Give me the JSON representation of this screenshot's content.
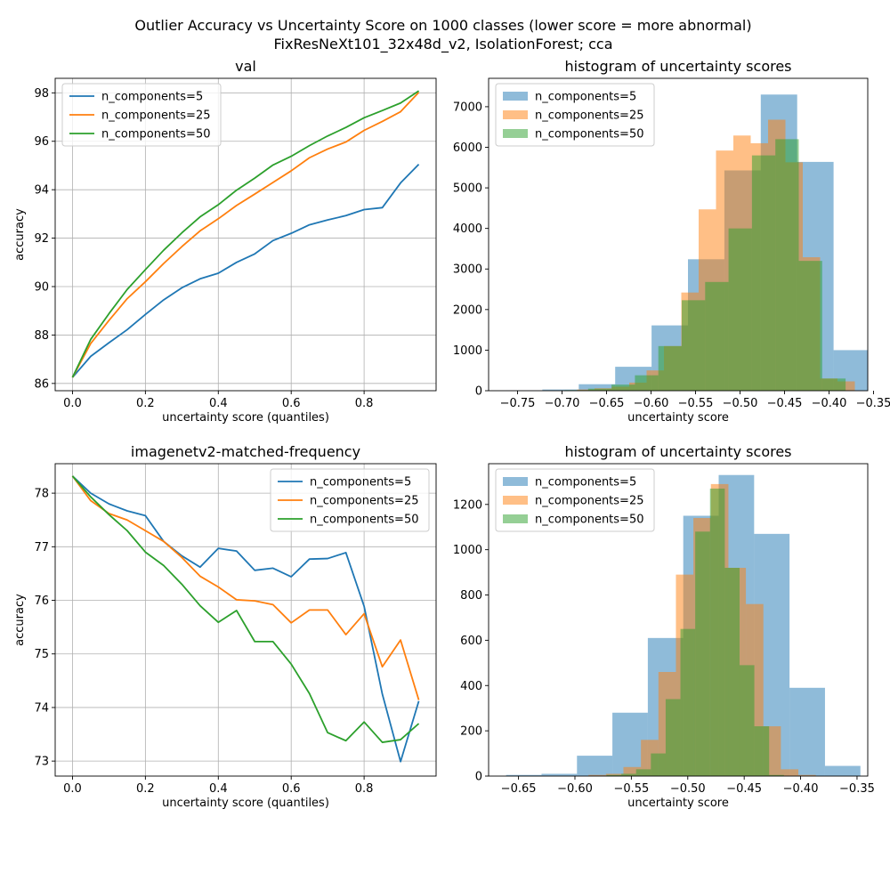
{
  "figure": {
    "title_line1": "Outlier Accuracy vs Uncertainty Score on 1000 classes (lower score = more abnormal)",
    "title_line2": "FixResNeXt101_32x48d_v2, IsolationForest; cca"
  },
  "colors": {
    "c5": "#1f77b4",
    "c25": "#ff7f0e",
    "c50": "#2ca02c",
    "grid": "#b0b0b0"
  },
  "chart_data": [
    {
      "type": "line",
      "title": "val",
      "xlabel": "uncertainty score (quantiles)",
      "ylabel": "accuracy",
      "grid": true,
      "legend": "top-left",
      "xlim": [
        -0.0475,
        0.9975
      ],
      "ylim": [
        85.7,
        98.6
      ],
      "xticks": [
        0.0,
        0.2,
        0.4,
        0.6,
        0.8
      ],
      "xtick_labels": [
        "0.0",
        "0.2",
        "0.4",
        "0.6",
        "0.8"
      ],
      "yticks": [
        86,
        88,
        90,
        92,
        94,
        96,
        98
      ],
      "ytick_labels": [
        "86",
        "88",
        "90",
        "92",
        "94",
        "96",
        "98"
      ],
      "x": [
        0.0,
        0.05,
        0.1,
        0.15,
        0.2,
        0.25,
        0.3,
        0.35,
        0.4,
        0.45,
        0.5,
        0.55,
        0.6,
        0.65,
        0.7,
        0.75,
        0.8,
        0.85,
        0.9,
        0.95
      ],
      "series": [
        {
          "name": "n_components=5",
          "color": "#1f77b4",
          "values": [
            86.25,
            87.12,
            87.68,
            88.22,
            88.85,
            89.45,
            89.95,
            90.32,
            90.55,
            91.0,
            91.35,
            91.9,
            92.2,
            92.55,
            92.75,
            92.93,
            93.18,
            93.26,
            94.28,
            95.05
          ]
        },
        {
          "name": "n_components=25",
          "color": "#ff7f0e",
          "values": [
            86.25,
            87.65,
            88.6,
            89.5,
            90.2,
            90.95,
            91.65,
            92.3,
            92.8,
            93.35,
            93.82,
            94.3,
            94.78,
            95.32,
            95.68,
            95.97,
            96.45,
            96.82,
            97.22,
            98.02
          ]
        },
        {
          "name": "n_components=50",
          "color": "#2ca02c",
          "values": [
            86.25,
            87.82,
            88.88,
            89.88,
            90.7,
            91.5,
            92.22,
            92.88,
            93.38,
            93.98,
            94.48,
            95.02,
            95.38,
            95.82,
            96.22,
            96.57,
            96.97,
            97.27,
            97.58,
            98.08
          ]
        }
      ]
    },
    {
      "type": "histogram",
      "title": "histogram of uncertainty scores",
      "xlabel": "uncertainty score",
      "ylabel": "",
      "grid": false,
      "legend": "top-left",
      "alpha": 0.5,
      "xlim": [
        -0.7825,
        -0.3565
      ],
      "ylim": [
        0,
        7700
      ],
      "xticks": [
        -0.75,
        -0.7,
        -0.65,
        -0.6,
        -0.55,
        -0.5,
        -0.45,
        -0.4,
        -0.35
      ],
      "xtick_labels": [
        "−0.75",
        "−0.70",
        "−0.65",
        "−0.60",
        "−0.55",
        "−0.50",
        "−0.45",
        "−0.40",
        "−0.35"
      ],
      "yticks": [
        0,
        1000,
        2000,
        3000,
        4000,
        5000,
        6000,
        7000
      ],
      "ytick_labels": [
        "0",
        "1000",
        "2000",
        "3000",
        "4000",
        "5000",
        "6000",
        "7000"
      ],
      "series": [
        {
          "name": "n_components=5",
          "color": "#1f77b4",
          "bin_edges": [
            -0.763,
            -0.7221,
            -0.6812,
            -0.6403,
            -0.5994,
            -0.5585,
            -0.5176,
            -0.4767,
            -0.4358,
            -0.3949,
            -0.354
          ],
          "counts": [
            5,
            30,
            160,
            590,
            1610,
            3240,
            5430,
            7300,
            5640,
            1000
          ]
        },
        {
          "name": "n_components=25",
          "color": "#ff7f0e",
          "bin_edges": [
            -0.722,
            -0.7025,
            -0.683,
            -0.6635,
            -0.644,
            -0.6245,
            -0.605,
            -0.5855,
            -0.566,
            -0.5465,
            -0.527,
            -0.5075,
            -0.488,
            -0.4685,
            -0.449,
            -0.4295,
            -0.41,
            -0.3905,
            -0.371
          ],
          "counts": [
            5,
            10,
            30,
            60,
            100,
            200,
            500,
            1100,
            2420,
            4470,
            5920,
            6290,
            6100,
            6680,
            5630,
            3290,
            300,
            230
          ]
        },
        {
          "name": "n_components=50",
          "color": "#2ca02c",
          "bin_edges": [
            -0.697,
            -0.6707,
            -0.6444,
            -0.6181,
            -0.5918,
            -0.5655,
            -0.5392,
            -0.5129,
            -0.4866,
            -0.4603,
            -0.434,
            -0.4077,
            -0.3814
          ],
          "counts": [
            15,
            50,
            150,
            380,
            1100,
            2230,
            2680,
            4000,
            5800,
            6200,
            3200,
            300
          ]
        }
      ]
    },
    {
      "type": "line",
      "title": "imagenetv2-matched-frequency",
      "xlabel": "uncertainty score (quantiles)",
      "ylabel": "accuracy",
      "grid": true,
      "legend": "top-right",
      "xlim": [
        -0.0475,
        0.9975
      ],
      "ylim": [
        72.72,
        78.55
      ],
      "xticks": [
        0.0,
        0.2,
        0.4,
        0.6,
        0.8
      ],
      "xtick_labels": [
        "0.0",
        "0.2",
        "0.4",
        "0.6",
        "0.8"
      ],
      "yticks": [
        73,
        74,
        75,
        76,
        77,
        78
      ],
      "ytick_labels": [
        "73",
        "74",
        "75",
        "76",
        "77",
        "78"
      ],
      "x": [
        0.0,
        0.05,
        0.1,
        0.15,
        0.2,
        0.25,
        0.3,
        0.35,
        0.4,
        0.45,
        0.5,
        0.55,
        0.6,
        0.65,
        0.7,
        0.75,
        0.8,
        0.85,
        0.9,
        0.95
      ],
      "series": [
        {
          "name": "n_components=5",
          "color": "#1f77b4",
          "values": [
            78.32,
            78.0,
            77.8,
            77.67,
            77.58,
            77.1,
            76.83,
            76.62,
            76.97,
            76.92,
            76.56,
            76.6,
            76.44,
            76.77,
            76.78,
            76.89,
            75.89,
            74.25,
            72.99,
            74.12
          ]
        },
        {
          "name": "n_components=25",
          "color": "#ff7f0e",
          "values": [
            78.32,
            77.86,
            77.62,
            77.5,
            77.3,
            77.1,
            76.8,
            76.45,
            76.25,
            76.01,
            75.99,
            75.92,
            75.58,
            75.82,
            75.82,
            75.36,
            75.75,
            74.76,
            75.26,
            74.14
          ]
        },
        {
          "name": "n_components=50",
          "color": "#2ca02c",
          "values": [
            78.32,
            77.93,
            77.6,
            77.3,
            76.9,
            76.65,
            76.3,
            75.9,
            75.59,
            75.81,
            75.23,
            75.23,
            74.81,
            74.26,
            73.53,
            73.38,
            73.73,
            73.35,
            73.4,
            73.7
          ]
        }
      ]
    },
    {
      "type": "histogram",
      "title": "histogram of uncertainty scores",
      "xlabel": "uncertainty score",
      "ylabel": "",
      "grid": false,
      "legend": "top-left",
      "alpha": 0.5,
      "xlim": [
        -0.6765,
        -0.3405
      ],
      "ylim": [
        0,
        1380
      ],
      "xticks": [
        -0.65,
        -0.6,
        -0.55,
        -0.5,
        -0.45,
        -0.4,
        -0.35
      ],
      "xtick_labels": [
        "−0.65",
        "−0.60",
        "−0.55",
        "−0.50",
        "−0.45",
        "−0.40",
        "−0.35"
      ],
      "yticks": [
        0,
        200,
        400,
        600,
        800,
        1000,
        1200
      ],
      "ytick_labels": [
        "0",
        "200",
        "400",
        "600",
        "800",
        "1000",
        "1200"
      ],
      "series": [
        {
          "name": "n_components=5",
          "color": "#1f77b4",
          "bin_edges": [
            -0.661,
            -0.6296,
            -0.5982,
            -0.5668,
            -0.5354,
            -0.504,
            -0.4726,
            -0.4412,
            -0.4098,
            -0.3784,
            -0.347
          ],
          "counts": [
            5,
            10,
            90,
            280,
            610,
            1150,
            1330,
            1070,
            390,
            45
          ]
        },
        {
          "name": "n_components=25",
          "color": "#ff7f0e",
          "bin_edges": [
            -0.588,
            -0.5725,
            -0.557,
            -0.5415,
            -0.526,
            -0.5105,
            -0.495,
            -0.4795,
            -0.464,
            -0.4485,
            -0.433,
            -0.4175,
            -0.402,
            -0.3865
          ],
          "counts": [
            5,
            10,
            40,
            160,
            460,
            890,
            1140,
            1290,
            920,
            760,
            220,
            30,
            5
          ]
        },
        {
          "name": "n_components=50",
          "color": "#2ca02c",
          "bin_edges": [
            -0.572,
            -0.5589,
            -0.5458,
            -0.5327,
            -0.5196,
            -0.5065,
            -0.4934,
            -0.4803,
            -0.4672,
            -0.4541,
            -0.441,
            -0.4279,
            -0.4148
          ],
          "counts": [
            5,
            10,
            30,
            100,
            340,
            650,
            1080,
            1270,
            920,
            490,
            220,
            5
          ]
        }
      ]
    }
  ]
}
